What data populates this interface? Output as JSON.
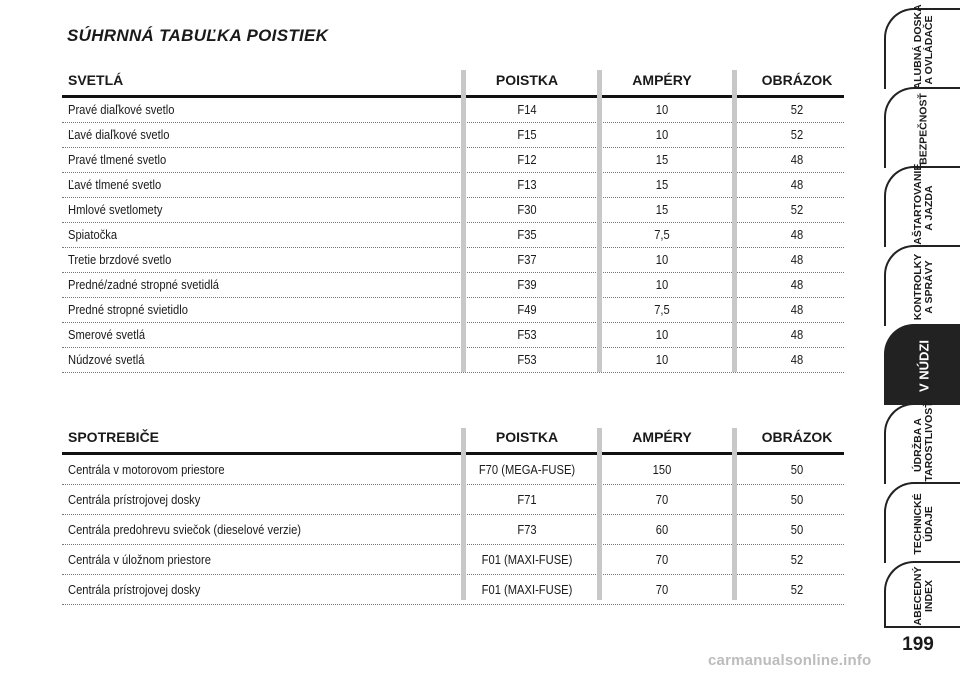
{
  "title": "SÚHRNNÁ TABUĽKA POISTIEK",
  "lights": {
    "headers": {
      "label": "SVETLÁ",
      "fuse": "POISTKA",
      "amps": "AMPÉRY",
      "figure": "OBRÁZOK"
    },
    "rows": [
      {
        "label": "Pravé diaľkové svetlo",
        "fuse": "F14",
        "amps": "10",
        "figure": "52"
      },
      {
        "label": "Ľavé diaľkové svetlo",
        "fuse": "F15",
        "amps": "10",
        "figure": "52"
      },
      {
        "label": "Pravé tlmené svetlo",
        "fuse": "F12",
        "amps": "15",
        "figure": "48"
      },
      {
        "label": "Ľavé tlmené svetlo",
        "fuse": "F13",
        "amps": "15",
        "figure": "48"
      },
      {
        "label": "Hmlové svetlomety",
        "fuse": "F30",
        "amps": "15",
        "figure": "52"
      },
      {
        "label": "Spiatočka",
        "fuse": "F35",
        "amps": "7,5",
        "figure": "48"
      },
      {
        "label": "Tretie brzdové svetlo",
        "fuse": "F37",
        "amps": "10",
        "figure": "48"
      },
      {
        "label": "Predné/zadné stropné svetidlá",
        "fuse": "F39",
        "amps": "10",
        "figure": "48"
      },
      {
        "label": "Predné stropné svietidlo",
        "fuse": "F49",
        "amps": "7,5",
        "figure": "48"
      },
      {
        "label": "Smerové svetlá",
        "fuse": "F53",
        "amps": "10",
        "figure": "48"
      },
      {
        "label": "Núdzové svetlá",
        "fuse": "F53",
        "amps": "10",
        "figure": "48"
      }
    ]
  },
  "appliances": {
    "headers": {
      "label": "SPOTREBIČE",
      "fuse": "POISTKA",
      "amps": "AMPÉRY",
      "figure": "OBRÁZOK"
    },
    "rows": [
      {
        "label": "Centrála v motorovom priestore",
        "fuse": "F70 (MEGA-FUSE)",
        "amps": "150",
        "figure": "50"
      },
      {
        "label": "Centrála prístrojovej dosky",
        "fuse": "F71",
        "amps": "70",
        "figure": "50"
      },
      {
        "label": "Centrála predohrevu sviečok (dieselové verzie)",
        "fuse": "F73",
        "amps": "60",
        "figure": "50"
      },
      {
        "label": "Centrála v úložnom priestore",
        "fuse": "F01 (MAXI-FUSE)",
        "amps": "70",
        "figure": "52"
      },
      {
        "label": "Centrála prístrojovej dosky",
        "fuse": "F01 (MAXI-FUSE)",
        "amps": "70",
        "figure": "52"
      }
    ]
  },
  "side_tabs": [
    {
      "label": "PALUBNÁ DOSKA\nA OVLÁDAČE"
    },
    {
      "label": "BEZPEČNOSŤ"
    },
    {
      "label": "NAŠTARTOVANIE\nA JAZDA"
    },
    {
      "label": "KONTROLKY\nA SPRÁVY"
    },
    {
      "label": "V NÚDZI"
    },
    {
      "label": "ÚDRŽBA A\nSTAROSTLIVOSŤ"
    },
    {
      "label": "TECHNICKÉ\nÚDAJE"
    },
    {
      "label": "ABECEDNÝ\nINDEX"
    }
  ],
  "page_number": "199",
  "watermark": "carmanualsonline.info"
}
